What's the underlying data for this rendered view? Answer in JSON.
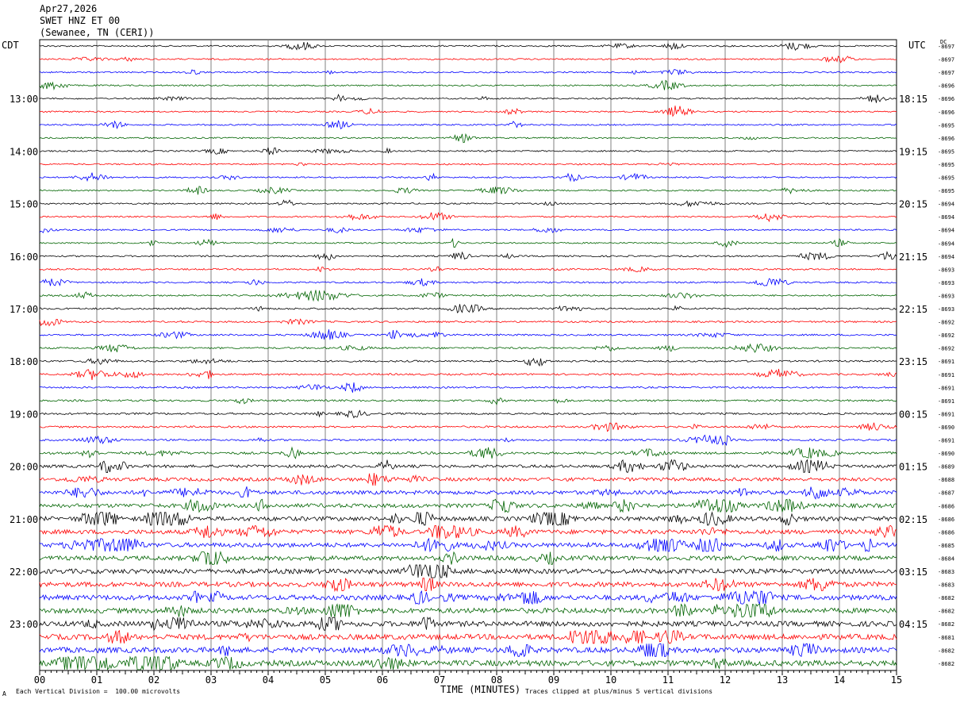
{
  "header": {
    "line1": "Apr27,2026",
    "line2": "SWET HNZ ET 00",
    "line3": "(Sewanee, TN (CERI))"
  },
  "corners": {
    "left_tz": "CDT",
    "right_tz": "UTC",
    "dc_label": "DC"
  },
  "footer": {
    "scale_note": "Each Vertical Division =  100.00 microvolts",
    "clip_note": "Traces clipped at plus/minus 5 vertical divisions",
    "mark": "A"
  },
  "colors": {
    "trace_cycle": [
      "#000000",
      "#ff0000",
      "#0000ff",
      "#006400"
    ],
    "grid": "#808080"
  },
  "chart_data": {
    "type": "line",
    "title": "SWET HNZ ET 00",
    "xlabel": "TIME (MINUTES)",
    "xlim": [
      0,
      15
    ],
    "x_ticks": [
      "00",
      "01",
      "02",
      "03",
      "04",
      "05",
      "06",
      "07",
      "08",
      "09",
      "10",
      "11",
      "12",
      "13",
      "14",
      "15"
    ],
    "left_hour_labels": [
      "13:00",
      "14:00",
      "15:00",
      "16:00",
      "17:00",
      "18:00",
      "19:00",
      "20:00",
      "21:00",
      "22:00",
      "23:00"
    ],
    "right_hour_labels": [
      "18:15",
      "19:15",
      "20:15",
      "21:15",
      "22:15",
      "23:15",
      "00:15",
      "01:15",
      "02:15",
      "03:15",
      "04:15"
    ],
    "hour_label_row_start": 4,
    "rows_per_hour": 4,
    "dc_offsets": [
      "-8697",
      "-8697",
      "-8697",
      "-8696",
      "-8696",
      "-8696",
      "-8695",
      "-8696",
      "-8695",
      "-8695",
      "-8695",
      "-8695",
      "-8694",
      "-8694",
      "-8694",
      "-8694",
      "-8694",
      "-8693",
      "-8693",
      "-8693",
      "-8693",
      "-8692",
      "-8692",
      "-8692",
      "-8691",
      "-8691",
      "-8691",
      "-8691",
      "-8691",
      "-8690",
      "-8691",
      "-8690",
      "-8689",
      "-8688",
      "-8687",
      "-8686",
      "-8686",
      "-8686",
      "-8685",
      "-8684",
      "-8683",
      "-8683",
      "-8682",
      "-8682",
      "-8682",
      "-8681",
      "-8682",
      "-8682"
    ],
    "noise_level": [
      1,
      1,
      1,
      1,
      1,
      1,
      1,
      1,
      1,
      1,
      1,
      1,
      1,
      1,
      1,
      1,
      1.1,
      1.1,
      1.1,
      1.1,
      1.2,
      1.2,
      1.2,
      1.2,
      1.2,
      1.2,
      1.2,
      1.3,
      1.3,
      1.3,
      1.3,
      1.6,
      2,
      2.4,
      2.6,
      2.8,
      3,
      3,
      3.1,
      3.1,
      3.3,
      3.4,
      3.5,
      3.5,
      3.6,
      3.7,
      3.8,
      3.9
    ],
    "grid": true
  }
}
